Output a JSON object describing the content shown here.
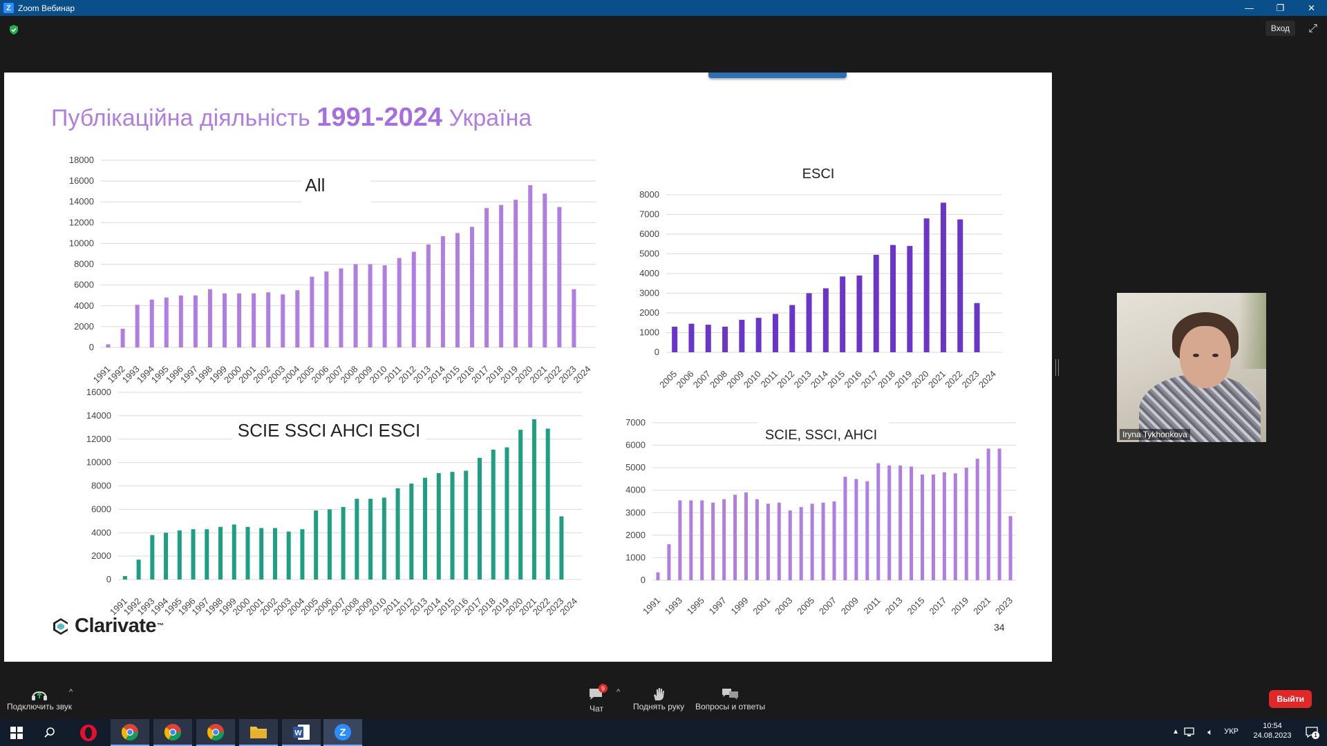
{
  "window": {
    "title": "Zoom Вебинар",
    "min": "—",
    "max": "❐",
    "close": "✕"
  },
  "topbar": {
    "enter_label": "Вход",
    "shield_icon": "shield-check-icon",
    "fullscreen_icon": "expand-icon"
  },
  "slide": {
    "title_part1": "Публікаційна діяльність ",
    "title_years": "1991-2024",
    "title_part2": " Україна",
    "brand": "Clarivate",
    "brand_tm": "™",
    "page_number": "34"
  },
  "chart_data": [
    {
      "id": "all",
      "type": "bar",
      "title": "All",
      "color": "#b07ee0",
      "categories": [
        "1991",
        "1992",
        "1993",
        "1994",
        "1995",
        "1996",
        "1997",
        "1998",
        "1999",
        "2000",
        "2001",
        "2002",
        "2003",
        "2004",
        "2005",
        "2006",
        "2007",
        "2008",
        "2009",
        "2010",
        "2011",
        "2012",
        "2013",
        "2014",
        "2015",
        "2016",
        "2017",
        "2018",
        "2019",
        "2020",
        "2021",
        "2022",
        "2023",
        "2024"
      ],
      "values": [
        300,
        1800,
        4100,
        4600,
        4800,
        5000,
        5000,
        5600,
        5200,
        5200,
        5200,
        5300,
        5100,
        5500,
        6800,
        7300,
        7600,
        8000,
        8000,
        7900,
        8600,
        9200,
        9900,
        10700,
        11000,
        11600,
        13400,
        13700,
        14200,
        15600,
        14800,
        13500,
        5600,
        0
      ],
      "ylim": [
        0,
        18000
      ],
      "yticks": [
        0,
        2000,
        4000,
        6000,
        8000,
        10000,
        12000,
        14000,
        16000,
        18000
      ]
    },
    {
      "id": "esci",
      "type": "bar",
      "title": "ESCI",
      "color": "#6a35c8",
      "categories": [
        "2005",
        "2006",
        "2007",
        "2008",
        "2009",
        "2010",
        "2011",
        "2012",
        "2013",
        "2014",
        "2015",
        "2016",
        "2017",
        "2018",
        "2019",
        "2020",
        "2021",
        "2022",
        "2023",
        "2024"
      ],
      "values": [
        1300,
        1450,
        1400,
        1300,
        1650,
        1750,
        1950,
        2400,
        3000,
        3250,
        3850,
        3900,
        4950,
        5450,
        5400,
        6800,
        7600,
        6750,
        2500,
        0
      ],
      "ylim": [
        0,
        8000
      ],
      "yticks": [
        0,
        1000,
        2000,
        3000,
        4000,
        5000,
        6000,
        7000,
        8000
      ]
    },
    {
      "id": "scie_all",
      "type": "bar",
      "title": "SCIE SSCI AHCI ESCI",
      "color": "#1e9e82",
      "categories": [
        "1991",
        "1992",
        "1993",
        "1994",
        "1995",
        "1996",
        "1997",
        "1998",
        "1999",
        "2000",
        "2001",
        "2002",
        "2003",
        "2004",
        "2005",
        "2006",
        "2007",
        "2008",
        "2009",
        "2010",
        "2011",
        "2012",
        "2013",
        "2014",
        "2015",
        "2016",
        "2017",
        "2018",
        "2019",
        "2020",
        "2021",
        "2022",
        "2023",
        "2024"
      ],
      "values": [
        300,
        1700,
        3800,
        4000,
        4200,
        4300,
        4300,
        4500,
        4700,
        4500,
        4400,
        4400,
        4100,
        4300,
        5900,
        6000,
        6200,
        6900,
        6900,
        7000,
        7800,
        8200,
        8700,
        9100,
        9200,
        9300,
        10400,
        11100,
        11300,
        12800,
        13700,
        12900,
        5400,
        0
      ],
      "ylim": [
        0,
        16000
      ],
      "yticks": [
        0,
        2000,
        4000,
        6000,
        8000,
        10000,
        12000,
        14000,
        16000
      ]
    },
    {
      "id": "scie",
      "type": "bar",
      "title": "SCIE, SSCI, AHCI",
      "color": "#b07ee0",
      "categories": [
        "1991",
        "1992",
        "1993",
        "1994",
        "1995",
        "1996",
        "1997",
        "1998",
        "1999",
        "2000",
        "2001",
        "2002",
        "2003",
        "2004",
        "2005",
        "2006",
        "2007",
        "2008",
        "2009",
        "2010",
        "2011",
        "2012",
        "2013",
        "2014",
        "2015",
        "2016",
        "2017",
        "2018",
        "2019",
        "2020",
        "2021",
        "2022",
        "2023"
      ],
      "tick_labels": [
        "1991",
        "1993",
        "1995",
        "1997",
        "1999",
        "2001",
        "2003",
        "2005",
        "2007",
        "2009",
        "2011",
        "2013",
        "2015",
        "2017",
        "2019",
        "2021",
        "2023"
      ],
      "values": [
        350,
        1600,
        3550,
        3550,
        3550,
        3450,
        3600,
        3800,
        3900,
        3600,
        3400,
        3450,
        3100,
        3250,
        3400,
        3450,
        3500,
        4600,
        4500,
        4400,
        5200,
        5100,
        5100,
        5050,
        4700,
        4700,
        4800,
        4750,
        5000,
        5400,
        5850,
        5850,
        2850
      ],
      "ylim": [
        0,
        7000
      ],
      "yticks": [
        0,
        1000,
        2000,
        3000,
        4000,
        5000,
        6000,
        7000
      ]
    }
  ],
  "video": {
    "participant_name": "Iryna Tykhonkova"
  },
  "bottombar": {
    "audio_label": "Подключить звук",
    "chat_label": "Чат",
    "chat_badge": "9",
    "raise_hand_label": "Поднять руку",
    "qa_label": "Вопросы и ответы",
    "leave_label": "Выйти"
  },
  "taskbar": {
    "lang": "УКР",
    "time": "10:54",
    "date": "24.08.2023",
    "notif_badge": "1",
    "apps": [
      "windows-start-icon",
      "search-icon",
      "opera-icon",
      "chrome-icon",
      "chrome-icon",
      "chrome-icon",
      "file-explorer-icon",
      "word-icon",
      "zoom-icon"
    ]
  }
}
